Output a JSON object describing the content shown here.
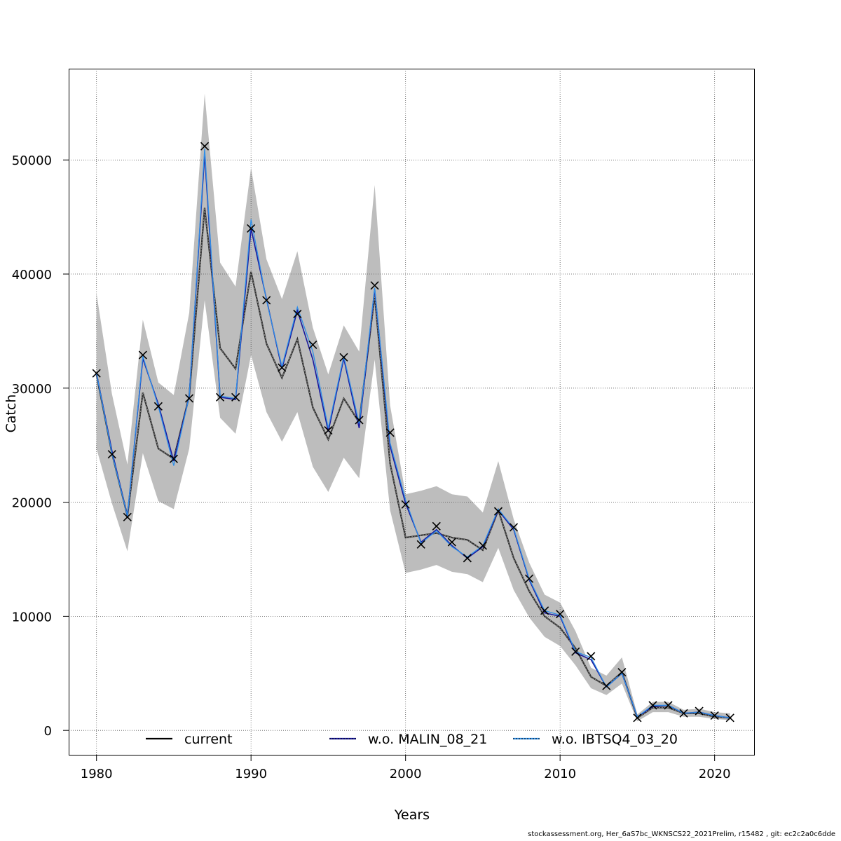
{
  "footer": "stockassessment.org, Her_6aS7bc_WKNSCS22_2021Prelim, r15482 , git: ec2c2a0c6dde",
  "chart_data": {
    "type": "line",
    "xlabel": "Years",
    "ylabel": "Catch",
    "xlim": [
      1978.2,
      2022.6
    ],
    "ylim": [
      -2200,
      58000
    ],
    "grid": true,
    "legend_position": "bottom",
    "x_ticks": [
      1980,
      1990,
      2000,
      2010,
      2020
    ],
    "y_ticks": [
      0,
      10000,
      20000,
      30000,
      40000,
      50000
    ],
    "x": [
      1980,
      1981,
      1982,
      1983,
      1984,
      1985,
      1986,
      1987,
      1988,
      1989,
      1990,
      1991,
      1992,
      1993,
      1994,
      1995,
      1996,
      1997,
      1998,
      1999,
      2000,
      2001,
      2002,
      2003,
      2004,
      2005,
      2006,
      2007,
      2008,
      2009,
      2010,
      2011,
      2012,
      2013,
      2014,
      2015,
      2016,
      2017,
      2018,
      2019,
      2020,
      2021
    ],
    "ci_upper": [
      38300,
      29500,
      23300,
      36000,
      30500,
      29400,
      36600,
      55800,
      41000,
      38900,
      49300,
      41300,
      37800,
      42000,
      35300,
      31200,
      35500,
      33200,
      47800,
      28500,
      20700,
      21000,
      21400,
      20700,
      20500,
      19100,
      23600,
      18500,
      14700,
      11900,
      11200,
      8700,
      5500,
      4800,
      6400,
      1400,
      2500,
      2500,
      1800,
      1900,
      1600,
      1500
    ],
    "ci_lower": [
      24700,
      19900,
      15700,
      24300,
      20100,
      19400,
      24700,
      37700,
      27400,
      26000,
      32900,
      27900,
      25300,
      27900,
      23100,
      20900,
      23900,
      22100,
      32500,
      19300,
      13800,
      14100,
      14500,
      13900,
      13700,
      13000,
      16000,
      12300,
      9900,
      8200,
      7400,
      5700,
      3700,
      3100,
      4100,
      800,
      1600,
      1600,
      1200,
      1200,
      1000,
      900
    ],
    "series": [
      {
        "name": "current",
        "color": "#000000",
        "values": [
          31200,
          24300,
          18800,
          29600,
          24700,
          23800,
          29300,
          45800,
          33500,
          31700,
          40200,
          33900,
          30900,
          34300,
          28300,
          25500,
          29100,
          27000,
          38100,
          23400,
          16900,
          17100,
          17300,
          16900,
          16700,
          15800,
          19300,
          15100,
          12200,
          10000,
          9000,
          7200,
          4700,
          3900,
          5100,
          1100,
          2000,
          2000,
          1500,
          1500,
          1200,
          1100
        ]
      },
      {
        "name": "w.o. MALIN_08_21",
        "color": "#1a1a9e",
        "values": [
          31300,
          24500,
          18800,
          32600,
          28600,
          23600,
          29300,
          50500,
          29200,
          29000,
          44000,
          37800,
          31700,
          36800,
          32500,
          26200,
          32600,
          26500,
          38700,
          24900,
          19900,
          16500,
          17600,
          16200,
          15100,
          16100,
          19300,
          17600,
          13200,
          10300,
          10000,
          6800,
          6200,
          3800,
          5000,
          1200,
          2100,
          2200,
          1500,
          1600,
          1300,
          1100
        ]
      },
      {
        "name": "w.o. IBTSQ4_03_20",
        "color": "#2f8fe8",
        "values": [
          31300,
          24300,
          18800,
          32800,
          28400,
          23200,
          29300,
          51000,
          29300,
          29100,
          44800,
          37700,
          31900,
          37100,
          33200,
          26500,
          32800,
          26900,
          38800,
          25200,
          20200,
          16400,
          17500,
          16100,
          15200,
          16200,
          19400,
          17700,
          13300,
          10500,
          10100,
          6900,
          6400,
          3800,
          5000,
          1200,
          2200,
          2200,
          1500,
          1600,
          1300,
          1100
        ]
      }
    ],
    "observed": [
      31300,
      24200,
      18700,
      32900,
      28400,
      23800,
      29100,
      51200,
      29200,
      29200,
      44000,
      37700,
      31800,
      36500,
      33800,
      26300,
      32700,
      27200,
      39000,
      26100,
      19800,
      16300,
      17900,
      16500,
      15100,
      16200,
      19200,
      17800,
      13300,
      10500,
      10200,
      6900,
      6500,
      3900,
      5100,
      1100,
      2200,
      2200,
      1500,
      1700,
      1300,
      1100
    ]
  }
}
